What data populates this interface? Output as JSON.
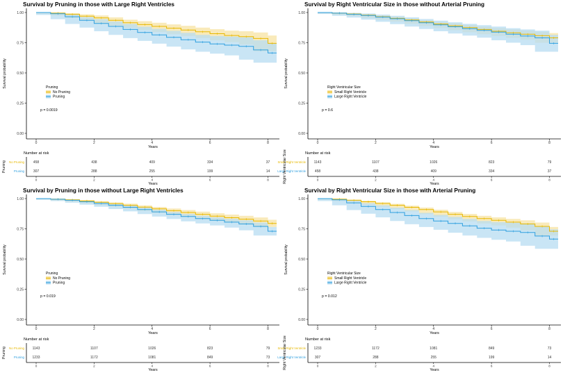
{
  "colors": {
    "group_a": "#e7b800",
    "group_b": "#2e9fdf",
    "band_a": "#f7e3a3",
    "band_b": "#b7dcf2"
  },
  "chart_data": [
    {
      "type": "line",
      "title": "Survival by Pruning in those with Large Right Ventricles",
      "xlabel": "Years",
      "ylabel": "Survival probability",
      "xlim": [
        0,
        8.3
      ],
      "ylim": [
        0,
        1
      ],
      "xticks": [
        "0",
        "2",
        "4",
        "6",
        "8"
      ],
      "yticks": [
        "0.00",
        "0.25",
        "0.50",
        "0.75",
        "1.00"
      ],
      "legend_title": "Pruning",
      "legend": [
        "No Pruning",
        "Pruning"
      ],
      "pvalue": "p = 0.0019",
      "series": [
        {
          "name": "No Pruning",
          "x": [
            0,
            0.5,
            1,
            1.5,
            2,
            2.5,
            3,
            3.5,
            4,
            4.5,
            5,
            5.5,
            6,
            6.5,
            7,
            7.5,
            8,
            8.3
          ],
          "y": [
            1,
            0.995,
            0.985,
            0.97,
            0.955,
            0.935,
            0.915,
            0.9,
            0.885,
            0.87,
            0.855,
            0.84,
            0.825,
            0.81,
            0.8,
            0.785,
            0.745,
            0.745
          ],
          "lower": [
            1,
            0.99,
            0.975,
            0.955,
            0.935,
            0.91,
            0.89,
            0.872,
            0.855,
            0.838,
            0.82,
            0.805,
            0.788,
            0.77,
            0.755,
            0.735,
            0.68,
            0.68
          ],
          "upper": [
            1,
            1,
            0.995,
            0.985,
            0.975,
            0.96,
            0.94,
            0.928,
            0.915,
            0.902,
            0.89,
            0.875,
            0.862,
            0.85,
            0.845,
            0.835,
            0.81,
            0.81
          ]
        },
        {
          "name": "Pruning",
          "x": [
            0,
            0.5,
            1,
            1.5,
            2,
            2.5,
            3,
            3.5,
            4,
            4.5,
            5,
            5.5,
            6,
            6.5,
            7,
            7.5,
            8,
            8.3
          ],
          "y": [
            1,
            0.99,
            0.965,
            0.935,
            0.91,
            0.885,
            0.86,
            0.835,
            0.815,
            0.795,
            0.775,
            0.755,
            0.74,
            0.73,
            0.72,
            0.69,
            0.665,
            0.665
          ],
          "lower": [
            1,
            0.98,
            0.945,
            0.905,
            0.875,
            0.845,
            0.815,
            0.788,
            0.765,
            0.742,
            0.718,
            0.695,
            0.675,
            0.66,
            0.645,
            0.61,
            0.585,
            0.585
          ],
          "upper": [
            1,
            1,
            0.985,
            0.962,
            0.945,
            0.925,
            0.905,
            0.882,
            0.865,
            0.848,
            0.832,
            0.815,
            0.805,
            0.8,
            0.795,
            0.77,
            0.745,
            0.745
          ]
        }
      ],
      "risk_table": {
        "title": "Number at risk",
        "ylabel": "Pruning",
        "rows": [
          {
            "label": "No Pruning",
            "values": [
              "458",
              "438",
              "409",
              "334",
              "37"
            ]
          },
          {
            "label": "Pruning",
            "values": [
              "307",
              "288",
              "255",
              "199",
              "14"
            ]
          }
        ],
        "xticks": [
          "0",
          "2",
          "4",
          "6",
          "8"
        ],
        "xlabel": "Years"
      }
    },
    {
      "type": "line",
      "title": "Survival by Right Ventricular Size in those without Arterial Pruning",
      "xlabel": "Years",
      "ylabel": "Survival probability",
      "xlim": [
        0,
        8.3
      ],
      "ylim": [
        0,
        1
      ],
      "xticks": [
        "0",
        "2",
        "4",
        "6",
        "8"
      ],
      "yticks": [
        "0.00",
        "0.25",
        "0.50",
        "0.75",
        "1.00"
      ],
      "legend_title": "Right Ventricular Size",
      "legend": [
        "Small Right Ventricle",
        "Large Right Ventricle"
      ],
      "pvalue": "p = 0.6",
      "series": [
        {
          "name": "Small Right Ventricle",
          "x": [
            0,
            0.5,
            1,
            1.5,
            2,
            2.5,
            3,
            3.5,
            4,
            4.5,
            5,
            5.5,
            6,
            6.5,
            7,
            7.5,
            8,
            8.3
          ],
          "y": [
            1,
            0.995,
            0.988,
            0.978,
            0.965,
            0.952,
            0.938,
            0.922,
            0.905,
            0.89,
            0.875,
            0.86,
            0.845,
            0.832,
            0.82,
            0.808,
            0.79,
            0.79
          ],
          "lower": [
            1,
            0.992,
            0.983,
            0.971,
            0.956,
            0.941,
            0.925,
            0.907,
            0.888,
            0.871,
            0.854,
            0.837,
            0.82,
            0.805,
            0.79,
            0.775,
            0.75,
            0.75
          ],
          "upper": [
            1,
            0.998,
            0.993,
            0.985,
            0.974,
            0.963,
            0.951,
            0.937,
            0.922,
            0.909,
            0.896,
            0.883,
            0.87,
            0.859,
            0.85,
            0.841,
            0.83,
            0.83
          ]
        },
        {
          "name": "Large Right Ventricle",
          "x": [
            0,
            0.5,
            1,
            1.5,
            2,
            2.5,
            3,
            3.5,
            4,
            4.5,
            5,
            5.5,
            6,
            6.5,
            7,
            7.5,
            8,
            8.3
          ],
          "y": [
            1,
            0.995,
            0.985,
            0.975,
            0.962,
            0.948,
            0.932,
            0.915,
            0.898,
            0.882,
            0.866,
            0.852,
            0.838,
            0.82,
            0.805,
            0.79,
            0.745,
            0.745
          ],
          "lower": [
            1,
            0.988,
            0.973,
            0.958,
            0.941,
            0.923,
            0.904,
            0.884,
            0.864,
            0.845,
            0.826,
            0.809,
            0.792,
            0.77,
            0.75,
            0.73,
            0.675,
            0.675
          ],
          "upper": [
            1,
            1,
            0.997,
            0.992,
            0.983,
            0.973,
            0.96,
            0.946,
            0.932,
            0.919,
            0.906,
            0.895,
            0.884,
            0.87,
            0.86,
            0.85,
            0.815,
            0.815
          ]
        }
      ],
      "risk_table": {
        "title": "Number at risk",
        "ylabel": "Right Ventricular Size",
        "rows": [
          {
            "label": "Small Right Ventricle",
            "values": [
              "1143",
              "1107",
              "1026",
              "823",
              "79"
            ]
          },
          {
            "label": "Large Right Ventricle",
            "values": [
              "458",
              "438",
              "409",
              "334",
              "37"
            ]
          }
        ],
        "xticks": [
          "0",
          "2",
          "4",
          "6",
          "8"
        ],
        "xlabel": "Years"
      }
    },
    {
      "type": "line",
      "title": "Survival by Pruning in those without Large Right Ventricles",
      "xlabel": "Years",
      "ylabel": "Survival probability",
      "xlim": [
        0,
        8.3
      ],
      "ylim": [
        0,
        1
      ],
      "xticks": [
        "0",
        "2",
        "4",
        "6",
        "8"
      ],
      "yticks": [
        "0.00",
        "0.25",
        "0.50",
        "0.75",
        "1.00"
      ],
      "legend_title": "Pruning",
      "legend": [
        "No Pruning",
        "Pruning"
      ],
      "pvalue": "p = 0.019",
      "series": [
        {
          "name": "No Pruning",
          "x": [
            0,
            0.5,
            1,
            1.5,
            2,
            2.5,
            3,
            3.5,
            4,
            4.5,
            5,
            5.5,
            6,
            6.5,
            7,
            7.5,
            8,
            8.3
          ],
          "y": [
            1,
            0.996,
            0.99,
            0.981,
            0.97,
            0.958,
            0.945,
            0.93,
            0.915,
            0.9,
            0.885,
            0.87,
            0.855,
            0.842,
            0.83,
            0.815,
            0.795,
            0.795
          ],
          "lower": [
            1,
            0.993,
            0.985,
            0.974,
            0.961,
            0.947,
            0.932,
            0.916,
            0.899,
            0.882,
            0.865,
            0.848,
            0.831,
            0.816,
            0.802,
            0.786,
            0.765,
            0.765
          ],
          "upper": [
            1,
            0.999,
            0.995,
            0.988,
            0.979,
            0.969,
            0.958,
            0.944,
            0.931,
            0.918,
            0.905,
            0.892,
            0.879,
            0.868,
            0.858,
            0.844,
            0.825,
            0.825
          ]
        },
        {
          "name": "Pruning",
          "x": [
            0,
            0.5,
            1,
            1.5,
            2,
            2.5,
            3,
            3.5,
            4,
            4.5,
            5,
            5.5,
            6,
            6.5,
            7,
            7.5,
            8,
            8.3
          ],
          "y": [
            1,
            0.995,
            0.986,
            0.974,
            0.96,
            0.945,
            0.928,
            0.91,
            0.89,
            0.87,
            0.852,
            0.835,
            0.82,
            0.805,
            0.79,
            0.77,
            0.73,
            0.73
          ],
          "lower": [
            1,
            0.991,
            0.98,
            0.966,
            0.95,
            0.933,
            0.914,
            0.894,
            0.872,
            0.851,
            0.831,
            0.812,
            0.795,
            0.778,
            0.76,
            0.738,
            0.695,
            0.695
          ],
          "upper": [
            1,
            0.999,
            0.992,
            0.982,
            0.97,
            0.957,
            0.942,
            0.926,
            0.908,
            0.889,
            0.873,
            0.858,
            0.845,
            0.832,
            0.82,
            0.802,
            0.765,
            0.765
          ]
        }
      ],
      "risk_table": {
        "title": "Number at risk",
        "ylabel": "Pruning",
        "rows": [
          {
            "label": "No Pruning",
            "values": [
              "1143",
              "1107",
              "1026",
              "823",
              "79"
            ]
          },
          {
            "label": "Pruning",
            "values": [
              "1233",
              "1172",
              "1081",
              "849",
              "73"
            ]
          }
        ],
        "xticks": [
          "0",
          "2",
          "4",
          "6",
          "8"
        ],
        "xlabel": "Years"
      }
    },
    {
      "type": "line",
      "title": "Survival by Right Ventricular Size in those with Arterial Pruning",
      "xlabel": "Years",
      "ylabel": "Survival probability",
      "xlim": [
        0,
        8.3
      ],
      "ylim": [
        0,
        1
      ],
      "xticks": [
        "0",
        "2",
        "4",
        "6",
        "8"
      ],
      "yticks": [
        "0.00",
        "0.25",
        "0.50",
        "0.75",
        "1.00"
      ],
      "legend_title": "Right Ventricular Size",
      "legend": [
        "Small Right Ventricle",
        "Large Right Ventricle"
      ],
      "pvalue": "p = 0.012",
      "series": [
        {
          "name": "Small Right Ventricle",
          "x": [
            0,
            0.5,
            1,
            1.5,
            2,
            2.5,
            3,
            3.5,
            4,
            4.5,
            5,
            5.5,
            6,
            6.5,
            7,
            7.5,
            8,
            8.3
          ],
          "y": [
            1,
            0.996,
            0.986,
            0.974,
            0.96,
            0.945,
            0.928,
            0.91,
            0.89,
            0.87,
            0.852,
            0.835,
            0.82,
            0.805,
            0.79,
            0.77,
            0.73,
            0.73
          ],
          "lower": [
            1,
            0.992,
            0.98,
            0.966,
            0.95,
            0.933,
            0.914,
            0.894,
            0.872,
            0.851,
            0.831,
            0.812,
            0.795,
            0.778,
            0.76,
            0.738,
            0.695,
            0.695
          ],
          "upper": [
            1,
            1,
            0.992,
            0.982,
            0.97,
            0.957,
            0.942,
            0.926,
            0.908,
            0.889,
            0.873,
            0.858,
            0.845,
            0.832,
            0.82,
            0.802,
            0.765,
            0.765
          ]
        },
        {
          "name": "Large Right Ventricle",
          "x": [
            0,
            0.5,
            1,
            1.5,
            2,
            2.5,
            3,
            3.5,
            4,
            4.5,
            5,
            5.5,
            6,
            6.5,
            7,
            7.5,
            8,
            8.3
          ],
          "y": [
            1,
            0.99,
            0.965,
            0.935,
            0.91,
            0.885,
            0.86,
            0.835,
            0.815,
            0.795,
            0.775,
            0.755,
            0.74,
            0.73,
            0.72,
            0.69,
            0.665,
            0.665
          ],
          "lower": [
            1,
            0.98,
            0.945,
            0.905,
            0.875,
            0.845,
            0.815,
            0.788,
            0.765,
            0.742,
            0.718,
            0.695,
            0.675,
            0.66,
            0.645,
            0.61,
            0.585,
            0.585
          ],
          "upper": [
            1,
            1,
            0.985,
            0.962,
            0.945,
            0.925,
            0.905,
            0.882,
            0.865,
            0.848,
            0.832,
            0.815,
            0.805,
            0.8,
            0.795,
            0.77,
            0.745,
            0.745
          ]
        }
      ],
      "risk_table": {
        "title": "Number at risk",
        "ylabel": "Right Ventricular Size",
        "rows": [
          {
            "label": "Small Right Ventricle",
            "values": [
              "1233",
              "1172",
              "1081",
              "849",
              "73"
            ]
          },
          {
            "label": "Large Right Ventricle",
            "values": [
              "307",
              "288",
              "255",
              "199",
              "14"
            ]
          }
        ],
        "xticks": [
          "0",
          "2",
          "4",
          "6",
          "8"
        ],
        "xlabel": "Years"
      }
    }
  ]
}
